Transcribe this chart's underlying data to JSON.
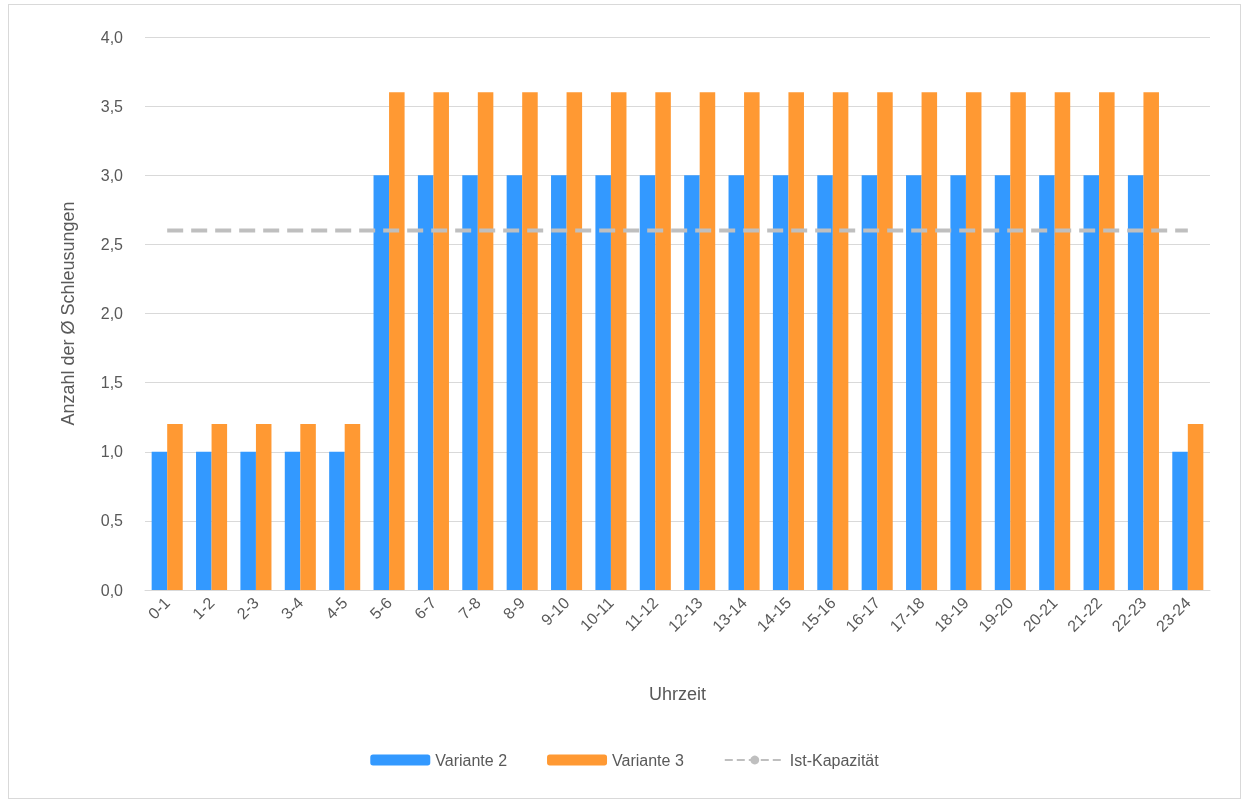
{
  "chart_data": {
    "type": "bar",
    "xlabel": "Uhrzeit",
    "ylabel": "Anzahl der Ø Schleusungen",
    "categories": [
      "0-1",
      "1-2",
      "2-3",
      "3-4",
      "4-5",
      "5-6",
      "6-7",
      "7-8",
      "8-9",
      "9-10",
      "10-11",
      "11-12",
      "12-13",
      "13-14",
      "14-15",
      "15-16",
      "16-17",
      "17-18",
      "18-19",
      "19-20",
      "20-21",
      "21-22",
      "22-23",
      "23-24"
    ],
    "series": [
      {
        "name": "Variante 2",
        "color": "#3399ff",
        "values": [
          1,
          1,
          1,
          1,
          1,
          3,
          3,
          3,
          3,
          3,
          3,
          3,
          3,
          3,
          3,
          3,
          3,
          3,
          3,
          3,
          3,
          3,
          3,
          1
        ]
      },
      {
        "name": "Variante 3",
        "color": "#ff9933",
        "values": [
          1.2,
          1.2,
          1.2,
          1.2,
          1.2,
          3.6,
          3.6,
          3.6,
          3.6,
          3.6,
          3.6,
          3.6,
          3.6,
          3.6,
          3.6,
          3.6,
          3.6,
          3.6,
          3.6,
          3.6,
          3.6,
          3.6,
          3.6,
          1.2
        ]
      },
      {
        "name": "Ist-Kapazität",
        "type": "line",
        "color": "#bfbfbf",
        "line_style": "dashed",
        "marker": "none",
        "values": [
          2.6,
          2.6,
          2.6,
          2.6,
          2.6,
          2.6,
          2.6,
          2.6,
          2.6,
          2.6,
          2.6,
          2.6,
          2.6,
          2.6,
          2.6,
          2.6,
          2.6,
          2.6,
          2.6,
          2.6,
          2.6,
          2.6,
          2.6,
          2.6
        ]
      }
    ],
    "ylim": [
      0,
      4
    ],
    "yticks": [
      {
        "value": 0,
        "label": "0,0"
      },
      {
        "value": 0.5,
        "label": "0,5"
      },
      {
        "value": 1,
        "label": "1,0"
      },
      {
        "value": 1.5,
        "label": "1,5"
      },
      {
        "value": 2,
        "label": "2,0"
      },
      {
        "value": 2.5,
        "label": "2,5"
      },
      {
        "value": 3,
        "label": "3,0"
      },
      {
        "value": 3.5,
        "label": "3,5"
      },
      {
        "value": 4,
        "label": "4,0"
      }
    ],
    "grid": "y",
    "legend": "bottom"
  }
}
